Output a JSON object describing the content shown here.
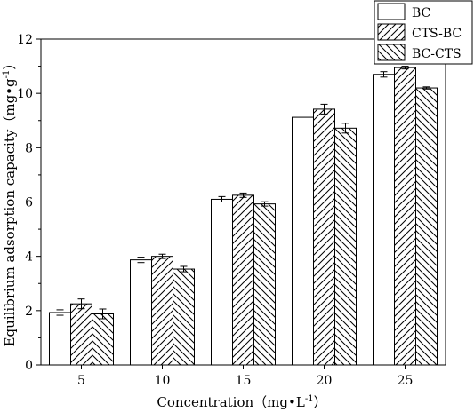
{
  "chart_data": {
    "type": "bar",
    "title": "",
    "xlabel": "Concentration（mg•L",
    "xlabel_sup": "-1",
    "xlabel_close": "）",
    "ylabel": "Equilibrium adsorption capacity（mg•g",
    "ylabel_sup": "-1",
    "ylabel_close": "）",
    "categories": [
      "5",
      "10",
      "15",
      "20",
      "25"
    ],
    "ylim": [
      0,
      12
    ],
    "yticks": [
      "0",
      "2",
      "4",
      "6",
      "8",
      "10",
      "12"
    ],
    "grid": false,
    "legend_position": "top-right",
    "series": [
      {
        "name": "BC",
        "pattern": "none",
        "values": [
          1.93,
          3.87,
          6.1,
          9.12,
          10.7
        ],
        "errors": [
          0.1,
          0.1,
          0.1,
          0.0,
          0.1
        ]
      },
      {
        "name": "CTS-BC",
        "pattern": "diagonal-up",
        "values": [
          2.25,
          4.0,
          6.25,
          9.42,
          10.95
        ],
        "errors": [
          0.18,
          0.08,
          0.08,
          0.18,
          0.05
        ]
      },
      {
        "name": "BC-CTS",
        "pattern": "diagonal-down",
        "values": [
          1.88,
          3.53,
          5.93,
          8.72,
          10.2
        ],
        "errors": [
          0.18,
          0.1,
          0.08,
          0.18,
          0.04
        ]
      }
    ]
  }
}
